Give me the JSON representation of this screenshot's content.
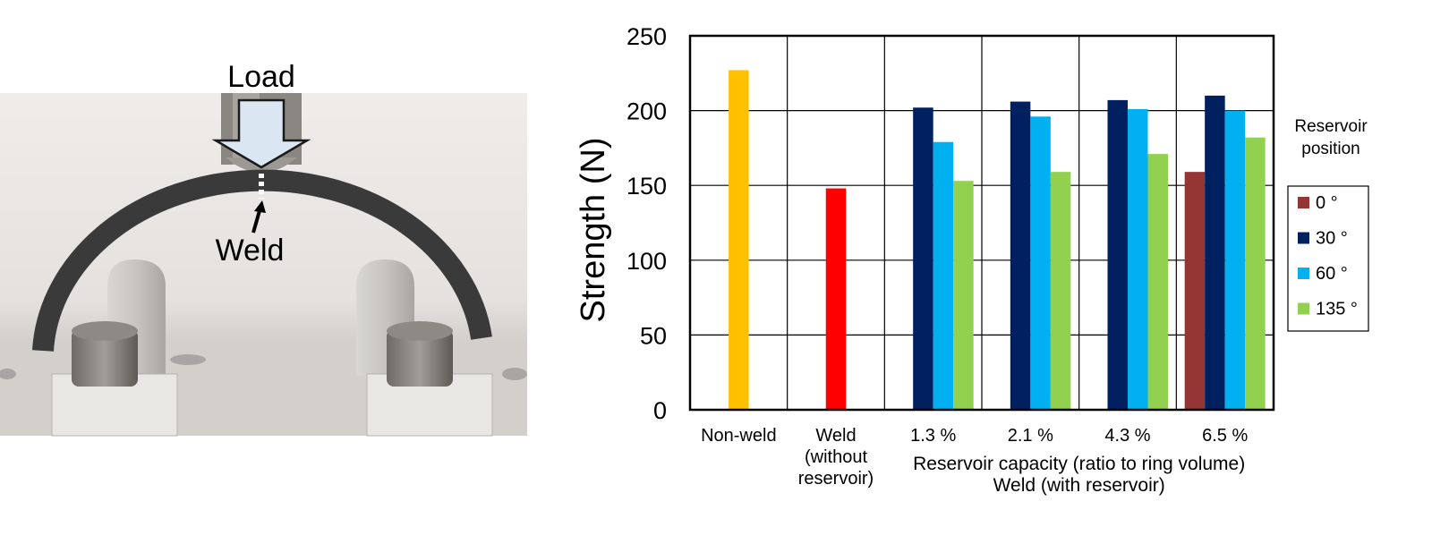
{
  "photo": {
    "load_label": "Load",
    "weld_label": "Weld"
  },
  "chart_data": {
    "type": "bar",
    "title": "",
    "ylabel": "Strength (N)",
    "ylim": [
      0,
      250
    ],
    "yticks": [
      0,
      50,
      100,
      150,
      200,
      250
    ],
    "grid": true,
    "categories": [
      [
        "Non-weld"
      ],
      [
        "Weld",
        "(without",
        "reservoir)"
      ],
      [
        "1.3 %"
      ],
      [
        "2.1 %"
      ],
      [
        "4.3 %"
      ],
      [
        "6.5 %"
      ]
    ],
    "xlabel_lines": [
      "Reservoir capacity (ratio to ring volume)",
      "Weld (with reservoir)"
    ],
    "legend_title": [
      "Reservoir",
      "position"
    ],
    "legend_position": "right",
    "single_bars": [
      {
        "name": "Non-weld",
        "value": 227,
        "color": "#FFC000"
      },
      {
        "name": "Weld (without reservoir)",
        "value": 148,
        "color": "#FF0000"
      }
    ],
    "series": [
      {
        "name": "0 °",
        "color": "#943634",
        "values": [
          null,
          null,
          null,
          null,
          null,
          159
        ]
      },
      {
        "name": "30 °",
        "color": "#002060",
        "values": [
          null,
          null,
          202,
          206,
          207,
          210
        ]
      },
      {
        "name": "60 °",
        "color": "#00B0F0",
        "values": [
          null,
          null,
          179,
          196,
          201,
          200
        ]
      },
      {
        "name": "135 °",
        "color": "#92D050",
        "values": [
          null,
          null,
          153,
          159,
          171,
          182
        ]
      }
    ]
  }
}
